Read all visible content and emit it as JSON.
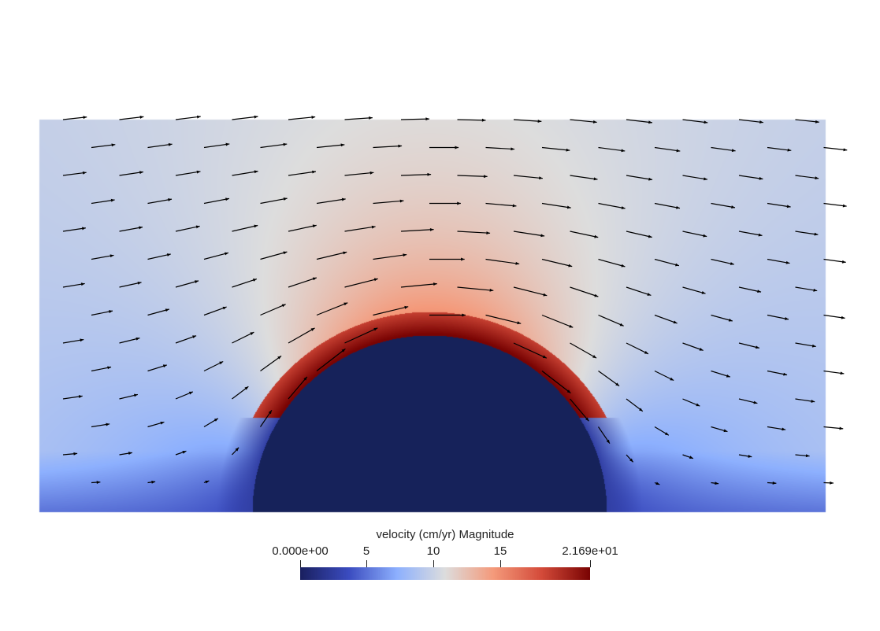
{
  "visualization": {
    "field": "velocity (cm/yr) Magnitude",
    "description_type": "ParaView glyph plot over a rectangular domain with a semi-circular obstacle at the bottom center"
  },
  "colorbar": {
    "title": "velocity (cm/yr) Magnitude",
    "min_label": "0.000e+00",
    "max_label": "2.169e+01",
    "ticks": [
      "5",
      "10",
      "15"
    ],
    "min_value": 0,
    "max_value": 21.69,
    "tick_values": [
      5,
      10,
      15
    ],
    "colormap": [
      "#1a2060",
      "#3b4cc0",
      "#8db0fe",
      "#dddddd",
      "#f49a7b",
      "#d44b3a",
      "#7a0403"
    ]
  },
  "colors": {
    "obstacle": "#16225a",
    "background": "#ffffff",
    "arrow": "#000000"
  }
}
